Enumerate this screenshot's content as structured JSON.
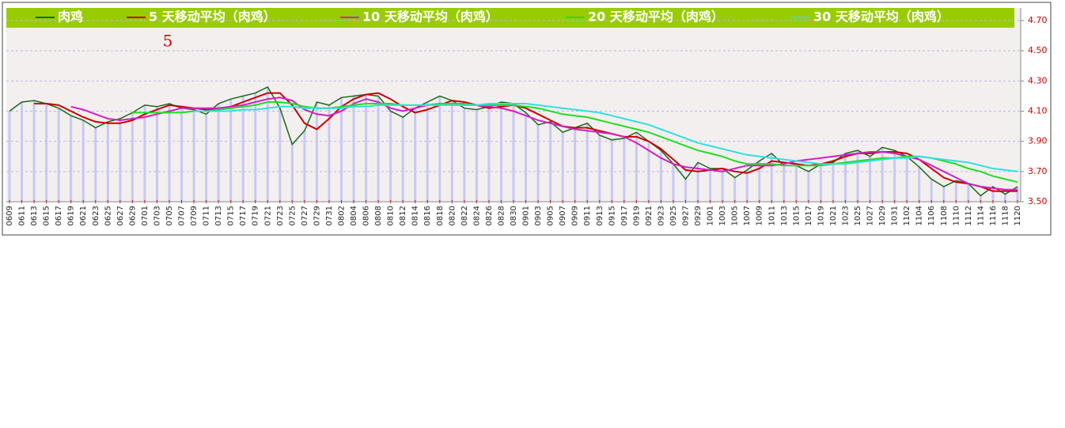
{
  "chart_data": {
    "type": "line",
    "annotation": "5",
    "categories": [
      "0609",
      "0611",
      "0613",
      "0615",
      "0617",
      "0619",
      "0621",
      "0623",
      "0625",
      "0627",
      "0629",
      "0701",
      "0703",
      "0705",
      "0707",
      "0709",
      "0711",
      "0713",
      "0715",
      "0717",
      "0719",
      "0721",
      "0723",
      "0725",
      "0727",
      "0729",
      "0731",
      "0802",
      "0804",
      "0806",
      "0808",
      "0810",
      "0812",
      "0814",
      "0816",
      "0818",
      "0820",
      "0822",
      "0824",
      "0826",
      "0828",
      "0830",
      "0901",
      "0903",
      "0905",
      "0907",
      "0909",
      "0911",
      "0913",
      "0915",
      "0917",
      "0919",
      "0921",
      "0923",
      "0925",
      "0927",
      "0929",
      "1001",
      "1003",
      "1005",
      "1007",
      "1009",
      "1011",
      "1013",
      "1015",
      "1017",
      "1019",
      "1021",
      "1023",
      "1025",
      "1027",
      "1029",
      "1031",
      "1102",
      "1104",
      "1106",
      "1108",
      "1110",
      "1112",
      "1114",
      "1116",
      "1118",
      "1120"
    ],
    "series": [
      {
        "name": "肉鸡",
        "color": "#1a6a1a",
        "bars_color": "#c8c8f4",
        "values": [
          4.1,
          4.16,
          4.17,
          4.15,
          4.12,
          4.07,
          4.04,
          3.99,
          4.03,
          4.05,
          4.09,
          4.14,
          4.13,
          4.15,
          4.12,
          4.11,
          4.08,
          4.15,
          4.18,
          4.2,
          4.22,
          4.26,
          4.12,
          3.88,
          3.97,
          4.16,
          4.14,
          4.19,
          4.2,
          4.21,
          4.2,
          4.1,
          4.06,
          4.12,
          4.16,
          4.2,
          4.17,
          4.12,
          4.11,
          4.13,
          4.16,
          4.15,
          4.09,
          4.01,
          4.03,
          3.96,
          3.99,
          4.02,
          3.94,
          3.91,
          3.92,
          3.96,
          3.9,
          3.84,
          3.75,
          3.65,
          3.76,
          3.72,
          3.72,
          3.66,
          3.71,
          3.77,
          3.82,
          3.74,
          3.74,
          3.7,
          3.75,
          3.76,
          3.82,
          3.84,
          3.8,
          3.86,
          3.84,
          3.8,
          3.73,
          3.65,
          3.6,
          3.64,
          3.62,
          3.54,
          3.6,
          3.55,
          3.6
        ]
      },
      {
        "name": "5 天移动平均（肉鸡）",
        "color": "#cc0000",
        "values": [
          null,
          null,
          4.15,
          4.15,
          4.14,
          4.1,
          4.06,
          4.03,
          4.02,
          4.02,
          4.04,
          4.08,
          4.11,
          4.14,
          4.13,
          4.12,
          4.11,
          4.11,
          4.13,
          4.16,
          4.19,
          4.22,
          4.22,
          4.14,
          4.02,
          3.98,
          4.05,
          4.13,
          4.18,
          4.21,
          4.22,
          4.18,
          4.13,
          4.09,
          4.11,
          4.14,
          4.17,
          4.16,
          4.14,
          4.12,
          4.13,
          4.14,
          4.12,
          4.08,
          4.04,
          4.0,
          3.99,
          3.99,
          3.97,
          3.95,
          3.93,
          3.93,
          3.9,
          3.85,
          3.78,
          3.71,
          3.7,
          3.71,
          3.72,
          3.7,
          3.69,
          3.72,
          3.77,
          3.76,
          3.75,
          3.74,
          3.75,
          3.77,
          3.8,
          3.82,
          3.82,
          3.83,
          3.83,
          3.82,
          3.78,
          3.72,
          3.66,
          3.63,
          3.62,
          3.6,
          3.57,
          3.57,
          3.57
        ]
      },
      {
        "name": "10 天移动平均（肉鸡）",
        "color": "#d020c8",
        "values": [
          null,
          null,
          null,
          null,
          null,
          4.13,
          4.11,
          4.08,
          4.05,
          4.04,
          4.05,
          4.06,
          4.08,
          4.1,
          4.12,
          4.12,
          4.12,
          4.12,
          4.13,
          4.14,
          4.16,
          4.18,
          4.19,
          4.17,
          4.11,
          4.08,
          4.07,
          4.1,
          4.15,
          4.18,
          4.16,
          4.12,
          4.1,
          4.12,
          4.14,
          4.15,
          4.14,
          4.14,
          4.14,
          4.13,
          4.12,
          4.1,
          4.07,
          4.04,
          4.02,
          4.0,
          3.98,
          3.97,
          3.96,
          3.95,
          3.93,
          3.89,
          3.84,
          3.79,
          3.75,
          3.73,
          3.72,
          3.71,
          3.7,
          3.72,
          3.74,
          3.74,
          3.74,
          3.75,
          3.77,
          3.78,
          3.79,
          3.8,
          3.81,
          3.82,
          3.83,
          3.83,
          3.82,
          3.8,
          3.78,
          3.74,
          3.7,
          3.66,
          3.62,
          3.6,
          3.59,
          3.58,
          3.58
        ]
      },
      {
        "name": "20 天移动平均（肉鸡）",
        "color": "#22dd22",
        "values": [
          null,
          null,
          null,
          null,
          null,
          null,
          null,
          null,
          null,
          null,
          4.09,
          4.09,
          4.09,
          4.09,
          4.09,
          4.1,
          4.1,
          4.11,
          4.12,
          4.13,
          4.14,
          4.16,
          4.16,
          4.15,
          4.13,
          4.12,
          4.12,
          4.13,
          4.14,
          4.15,
          4.15,
          4.15,
          4.14,
          4.14,
          4.14,
          4.15,
          4.15,
          4.15,
          4.14,
          4.14,
          4.14,
          4.14,
          4.13,
          4.12,
          4.1,
          4.08,
          4.07,
          4.06,
          4.04,
          4.02,
          4.0,
          3.98,
          3.96,
          3.93,
          3.9,
          3.87,
          3.84,
          3.82,
          3.8,
          3.77,
          3.75,
          3.75,
          3.75,
          3.74,
          3.74,
          3.74,
          3.74,
          3.75,
          3.76,
          3.77,
          3.78,
          3.79,
          3.79,
          3.8,
          3.8,
          3.79,
          3.77,
          3.75,
          3.72,
          3.7,
          3.67,
          3.65,
          3.63
        ]
      },
      {
        "name": "30 天移动平均（肉鸡）",
        "color": "#30e0e0",
        "values": [
          null,
          null,
          null,
          null,
          null,
          null,
          null,
          null,
          null,
          null,
          null,
          null,
          null,
          null,
          null,
          4.1,
          4.1,
          4.1,
          4.1,
          4.11,
          4.11,
          4.12,
          4.13,
          4.13,
          4.12,
          4.12,
          4.12,
          4.12,
          4.13,
          4.13,
          4.14,
          4.14,
          4.14,
          4.14,
          4.14,
          4.14,
          4.14,
          4.14,
          4.14,
          4.15,
          4.15,
          4.15,
          4.15,
          4.14,
          4.13,
          4.12,
          4.11,
          4.1,
          4.09,
          4.07,
          4.05,
          4.03,
          4.01,
          3.98,
          3.95,
          3.92,
          3.89,
          3.87,
          3.85,
          3.83,
          3.81,
          3.8,
          3.79,
          3.78,
          3.77,
          3.76,
          3.75,
          3.75,
          3.75,
          3.76,
          3.77,
          3.78,
          3.79,
          3.79,
          3.8,
          3.79,
          3.78,
          3.77,
          3.76,
          3.74,
          3.72,
          3.71,
          3.7
        ]
      }
    ],
    "ylim": [
      3.5,
      4.7
    ],
    "yticks": [
      {
        "value": 3.5,
        "label": "3.50"
      },
      {
        "value": 3.7,
        "label": "3.70"
      },
      {
        "value": 3.9,
        "label": "3.90"
      },
      {
        "value": 4.1,
        "label": "4.10"
      },
      {
        "value": 4.3,
        "label": "4.30"
      },
      {
        "value": 4.5,
        "label": "4.50"
      },
      {
        "value": 4.7,
        "label": "4.70"
      }
    ],
    "grid": true,
    "legend_position": "top"
  }
}
